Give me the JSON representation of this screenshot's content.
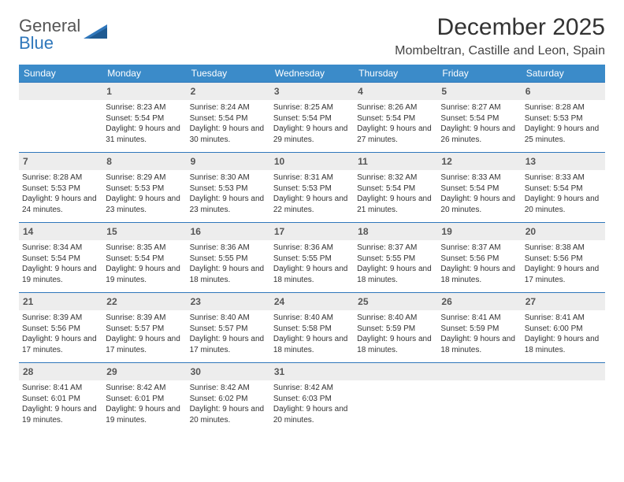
{
  "logo": {
    "text1": "General",
    "text2": "Blue"
  },
  "title": "December 2025",
  "location": "Mombeltran, Castille and Leon, Spain",
  "colors": {
    "header_bg": "#3b8bc9",
    "header_text": "#ffffff",
    "rule": "#2f77bb",
    "daynum_bg": "#ededed",
    "logo_blue": "#2f77bb"
  },
  "weekdays": [
    "Sunday",
    "Monday",
    "Tuesday",
    "Wednesday",
    "Thursday",
    "Friday",
    "Saturday"
  ],
  "weeks": [
    [
      {
        "n": "",
        "sr": "",
        "ss": "",
        "dl": ""
      },
      {
        "n": "1",
        "sr": "Sunrise: 8:23 AM",
        "ss": "Sunset: 5:54 PM",
        "dl": "Daylight: 9 hours and 31 minutes."
      },
      {
        "n": "2",
        "sr": "Sunrise: 8:24 AM",
        "ss": "Sunset: 5:54 PM",
        "dl": "Daylight: 9 hours and 30 minutes."
      },
      {
        "n": "3",
        "sr": "Sunrise: 8:25 AM",
        "ss": "Sunset: 5:54 PM",
        "dl": "Daylight: 9 hours and 29 minutes."
      },
      {
        "n": "4",
        "sr": "Sunrise: 8:26 AM",
        "ss": "Sunset: 5:54 PM",
        "dl": "Daylight: 9 hours and 27 minutes."
      },
      {
        "n": "5",
        "sr": "Sunrise: 8:27 AM",
        "ss": "Sunset: 5:54 PM",
        "dl": "Daylight: 9 hours and 26 minutes."
      },
      {
        "n": "6",
        "sr": "Sunrise: 8:28 AM",
        "ss": "Sunset: 5:53 PM",
        "dl": "Daylight: 9 hours and 25 minutes."
      }
    ],
    [
      {
        "n": "7",
        "sr": "Sunrise: 8:28 AM",
        "ss": "Sunset: 5:53 PM",
        "dl": "Daylight: 9 hours and 24 minutes."
      },
      {
        "n": "8",
        "sr": "Sunrise: 8:29 AM",
        "ss": "Sunset: 5:53 PM",
        "dl": "Daylight: 9 hours and 23 minutes."
      },
      {
        "n": "9",
        "sr": "Sunrise: 8:30 AM",
        "ss": "Sunset: 5:53 PM",
        "dl": "Daylight: 9 hours and 23 minutes."
      },
      {
        "n": "10",
        "sr": "Sunrise: 8:31 AM",
        "ss": "Sunset: 5:53 PM",
        "dl": "Daylight: 9 hours and 22 minutes."
      },
      {
        "n": "11",
        "sr": "Sunrise: 8:32 AM",
        "ss": "Sunset: 5:54 PM",
        "dl": "Daylight: 9 hours and 21 minutes."
      },
      {
        "n": "12",
        "sr": "Sunrise: 8:33 AM",
        "ss": "Sunset: 5:54 PM",
        "dl": "Daylight: 9 hours and 20 minutes."
      },
      {
        "n": "13",
        "sr": "Sunrise: 8:33 AM",
        "ss": "Sunset: 5:54 PM",
        "dl": "Daylight: 9 hours and 20 minutes."
      }
    ],
    [
      {
        "n": "14",
        "sr": "Sunrise: 8:34 AM",
        "ss": "Sunset: 5:54 PM",
        "dl": "Daylight: 9 hours and 19 minutes."
      },
      {
        "n": "15",
        "sr": "Sunrise: 8:35 AM",
        "ss": "Sunset: 5:54 PM",
        "dl": "Daylight: 9 hours and 19 minutes."
      },
      {
        "n": "16",
        "sr": "Sunrise: 8:36 AM",
        "ss": "Sunset: 5:55 PM",
        "dl": "Daylight: 9 hours and 18 minutes."
      },
      {
        "n": "17",
        "sr": "Sunrise: 8:36 AM",
        "ss": "Sunset: 5:55 PM",
        "dl": "Daylight: 9 hours and 18 minutes."
      },
      {
        "n": "18",
        "sr": "Sunrise: 8:37 AM",
        "ss": "Sunset: 5:55 PM",
        "dl": "Daylight: 9 hours and 18 minutes."
      },
      {
        "n": "19",
        "sr": "Sunrise: 8:37 AM",
        "ss": "Sunset: 5:56 PM",
        "dl": "Daylight: 9 hours and 18 minutes."
      },
      {
        "n": "20",
        "sr": "Sunrise: 8:38 AM",
        "ss": "Sunset: 5:56 PM",
        "dl": "Daylight: 9 hours and 17 minutes."
      }
    ],
    [
      {
        "n": "21",
        "sr": "Sunrise: 8:39 AM",
        "ss": "Sunset: 5:56 PM",
        "dl": "Daylight: 9 hours and 17 minutes."
      },
      {
        "n": "22",
        "sr": "Sunrise: 8:39 AM",
        "ss": "Sunset: 5:57 PM",
        "dl": "Daylight: 9 hours and 17 minutes."
      },
      {
        "n": "23",
        "sr": "Sunrise: 8:40 AM",
        "ss": "Sunset: 5:57 PM",
        "dl": "Daylight: 9 hours and 17 minutes."
      },
      {
        "n": "24",
        "sr": "Sunrise: 8:40 AM",
        "ss": "Sunset: 5:58 PM",
        "dl": "Daylight: 9 hours and 18 minutes."
      },
      {
        "n": "25",
        "sr": "Sunrise: 8:40 AM",
        "ss": "Sunset: 5:59 PM",
        "dl": "Daylight: 9 hours and 18 minutes."
      },
      {
        "n": "26",
        "sr": "Sunrise: 8:41 AM",
        "ss": "Sunset: 5:59 PM",
        "dl": "Daylight: 9 hours and 18 minutes."
      },
      {
        "n": "27",
        "sr": "Sunrise: 8:41 AM",
        "ss": "Sunset: 6:00 PM",
        "dl": "Daylight: 9 hours and 18 minutes."
      }
    ],
    [
      {
        "n": "28",
        "sr": "Sunrise: 8:41 AM",
        "ss": "Sunset: 6:01 PM",
        "dl": "Daylight: 9 hours and 19 minutes."
      },
      {
        "n": "29",
        "sr": "Sunrise: 8:42 AM",
        "ss": "Sunset: 6:01 PM",
        "dl": "Daylight: 9 hours and 19 minutes."
      },
      {
        "n": "30",
        "sr": "Sunrise: 8:42 AM",
        "ss": "Sunset: 6:02 PM",
        "dl": "Daylight: 9 hours and 20 minutes."
      },
      {
        "n": "31",
        "sr": "Sunrise: 8:42 AM",
        "ss": "Sunset: 6:03 PM",
        "dl": "Daylight: 9 hours and 20 minutes."
      },
      {
        "n": "",
        "sr": "",
        "ss": "",
        "dl": ""
      },
      {
        "n": "",
        "sr": "",
        "ss": "",
        "dl": ""
      },
      {
        "n": "",
        "sr": "",
        "ss": "",
        "dl": ""
      }
    ]
  ]
}
